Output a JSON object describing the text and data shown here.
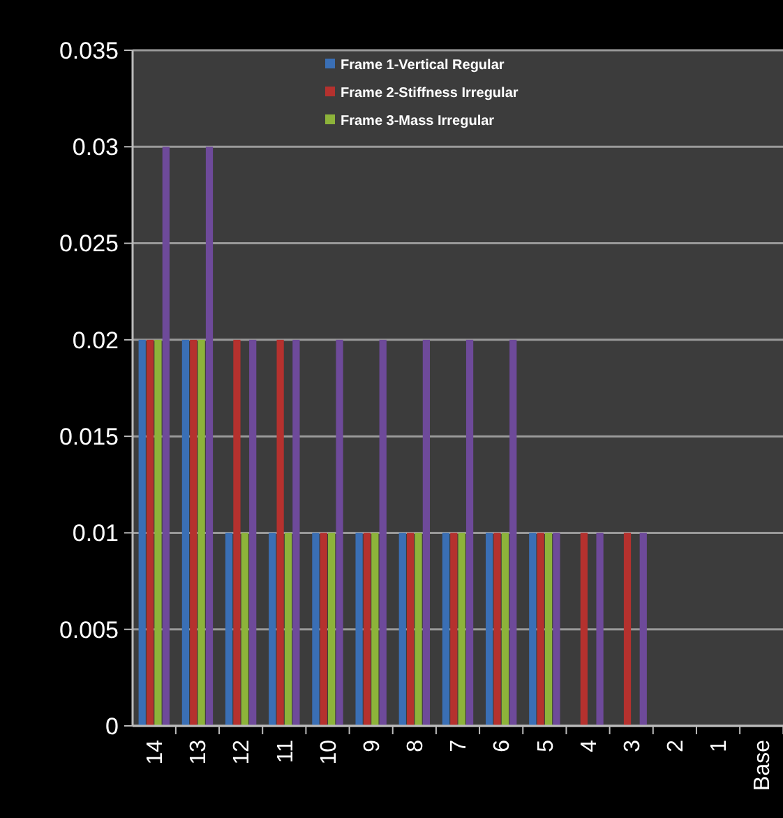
{
  "chart_data": {
    "type": "bar",
    "categories": [
      "14",
      "13",
      "12",
      "11",
      "10",
      "9",
      "8",
      "7",
      "6",
      "5",
      "4",
      "3",
      "2",
      "1",
      "Base"
    ],
    "series": [
      {
        "name": "Frame 1-Vertical Regular",
        "color": "#3a6fb5",
        "values": [
          0.02,
          0.02,
          0.01,
          0.01,
          0.01,
          0.01,
          0.01,
          0.01,
          0.01,
          0.01,
          null,
          null,
          null,
          null,
          null
        ]
      },
      {
        "name": "Frame 2-Stiffness Irregular",
        "color": "#b5312e",
        "values": [
          0.02,
          0.02,
          0.02,
          0.02,
          0.01,
          0.01,
          0.01,
          0.01,
          0.01,
          0.01,
          0.01,
          0.01,
          null,
          null,
          null
        ]
      },
      {
        "name": "Frame 3-Mass Irregular",
        "color": "#8db33a",
        "values": [
          0.02,
          0.02,
          0.01,
          0.01,
          0.01,
          0.01,
          0.01,
          0.01,
          0.01,
          0.01,
          null,
          null,
          null,
          null,
          null
        ]
      },
      {
        "color": "#6e4a9a",
        "values": [
          0.03,
          0.03,
          0.02,
          0.02,
          0.02,
          0.02,
          0.02,
          0.02,
          0.02,
          0.01,
          0.01,
          0.01,
          null,
          null,
          null
        ]
      }
    ],
    "ylim": [
      0,
      0.035
    ],
    "yticks": [
      {
        "value": 0,
        "label": "0"
      },
      0.005,
      0.01,
      0.015,
      0.02,
      0.025,
      0.03,
      0.035
    ],
    "grid": "y",
    "legend": "top"
  }
}
